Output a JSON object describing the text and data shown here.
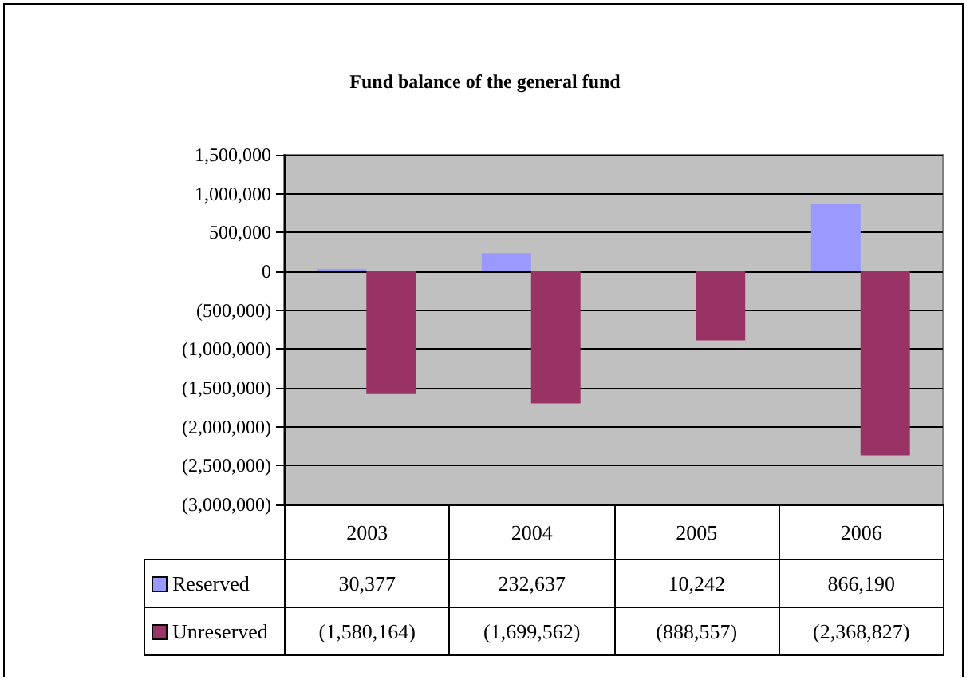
{
  "chart_data": {
    "type": "bar",
    "title": "Fund balance of the general fund",
    "categories": [
      "2003",
      "2004",
      "2005",
      "2006"
    ],
    "series": [
      {
        "name": "Reserved",
        "color": "#9999ff",
        "values": [
          30377,
          232637,
          10242,
          866190
        ],
        "value_labels": [
          "30,377",
          "232,637",
          "10,242",
          "866,190"
        ]
      },
      {
        "name": "Unreserved",
        "color": "#993366",
        "values": [
          -1580164,
          -1699562,
          -888557,
          -2368827
        ],
        "value_labels": [
          "(1,580,164)",
          "(1,699,562)",
          "(888,557)",
          "(2,368,827)"
        ]
      }
    ],
    "ylim": [
      -3000000,
      1500000
    ],
    "yticks": [
      {
        "value": -3000000,
        "label": "(3,000,000)"
      },
      {
        "value": -2500000,
        "label": "(2,500,000)"
      },
      {
        "value": -2000000,
        "label": "(2,000,000)"
      },
      {
        "value": -1500000,
        "label": "(1,500,000)"
      },
      {
        "value": -1000000,
        "label": "(1,000,000)"
      },
      {
        "value": -500000,
        "label": "(500,000)"
      },
      0,
      {
        "value": 500000,
        "label": "500,000"
      },
      {
        "value": 1000000,
        "label": "1,000,000"
      },
      {
        "value": 1500000,
        "label": "1,500,000"
      }
    ],
    "grid": "y",
    "legend": "bottom"
  }
}
